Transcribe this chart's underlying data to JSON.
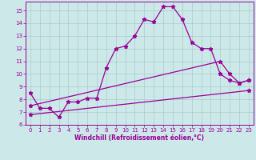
{
  "xlabel": "Windchill (Refroidissement éolien,°C)",
  "background_color": "#cce8e8",
  "line_color": "#990099",
  "grid_color": "#aacccc",
  "xlim": [
    -0.5,
    23.5
  ],
  "ylim": [
    6,
    15.7
  ],
  "xticks": [
    0,
    1,
    2,
    3,
    4,
    5,
    6,
    7,
    8,
    9,
    10,
    11,
    12,
    13,
    14,
    15,
    16,
    17,
    18,
    19,
    20,
    21,
    22,
    23
  ],
  "yticks": [
    6,
    7,
    8,
    9,
    10,
    11,
    12,
    13,
    14,
    15
  ],
  "line1_x": [
    0,
    1,
    2,
    3,
    4,
    5,
    6,
    7,
    8,
    9,
    10,
    11,
    12,
    13,
    14,
    15,
    16,
    17,
    18,
    19,
    20,
    21,
    22,
    23
  ],
  "line1_y": [
    8.5,
    7.3,
    7.3,
    6.6,
    7.8,
    7.8,
    8.1,
    8.1,
    10.5,
    12.0,
    12.2,
    13.0,
    14.3,
    14.1,
    15.3,
    15.3,
    14.3,
    12.5,
    12.0,
    12.0,
    10.0,
    9.5,
    9.3,
    9.5
  ],
  "line2_x": [
    0,
    20,
    21,
    22,
    23
  ],
  "line2_y": [
    7.5,
    11.0,
    10.0,
    9.3,
    9.5
  ],
  "line3_x": [
    0,
    23
  ],
  "line3_y": [
    6.8,
    8.7
  ],
  "marker": "*",
  "markersize": 3.5,
  "linewidth": 0.9
}
